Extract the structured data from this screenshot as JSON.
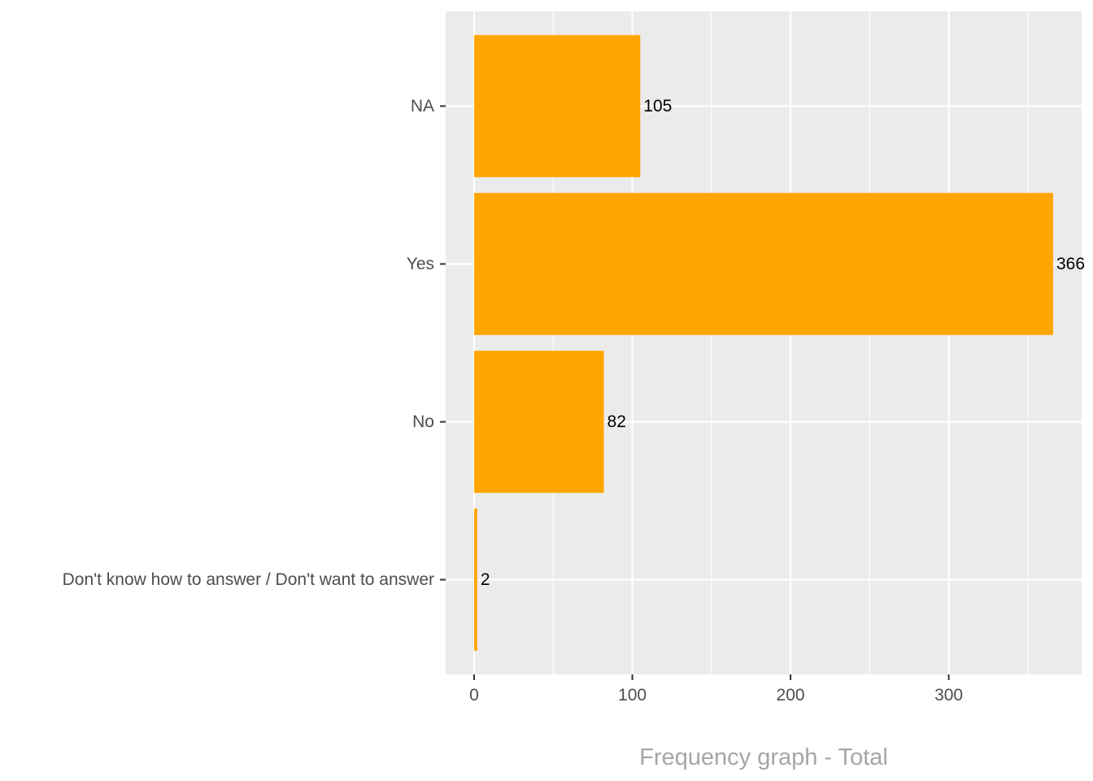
{
  "chart_data": {
    "type": "bar",
    "orientation": "horizontal",
    "categories": [
      "NA",
      "Yes",
      "No",
      "Don't know how to answer / Don't want to answer"
    ],
    "values": [
      105,
      366,
      82,
      2
    ],
    "data_labels": [
      "105",
      "366",
      "82",
      "2"
    ],
    "title": "",
    "xlabel": "Frequency graph - Total",
    "ylabel": "",
    "xlim": [
      -18,
      384
    ],
    "x_ticks": [
      0,
      100,
      200,
      300
    ],
    "x_tick_labels": [
      "0",
      "100",
      "200",
      "300"
    ],
    "grid": true,
    "legend": "none",
    "colors": {
      "bar": "#FFA500",
      "panel_background": "#EBEBEB",
      "grid": "#FFFFFF",
      "tick_text": "#4D4D4D",
      "axis_title": "#A6A6A6",
      "data_label": "#000000"
    }
  }
}
